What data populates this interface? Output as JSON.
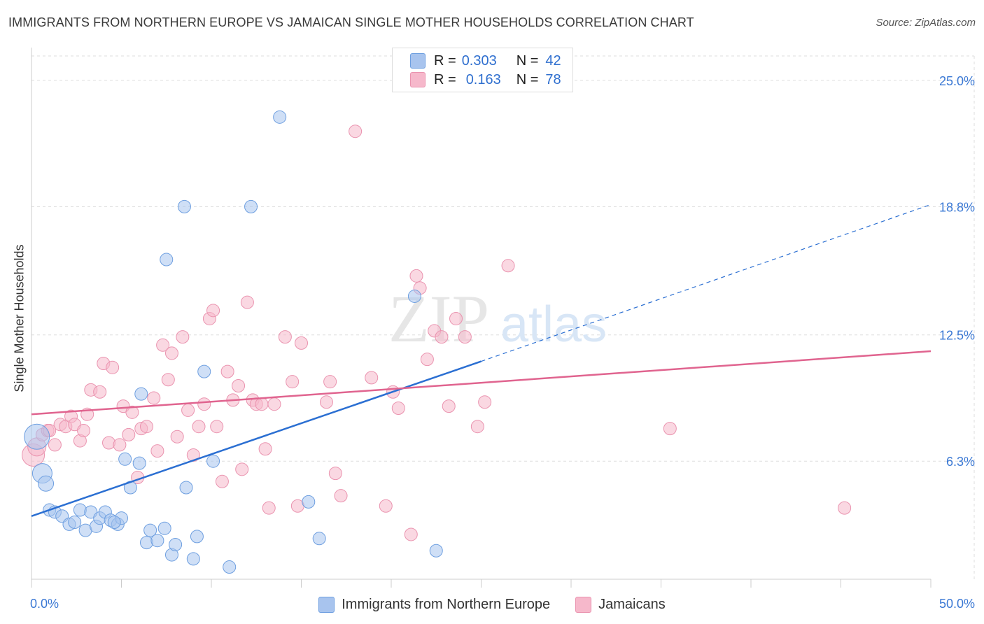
{
  "title": "IMMIGRANTS FROM NORTHERN EUROPE VS JAMAICAN SINGLE MOTHER HOUSEHOLDS CORRELATION CHART",
  "source": "Source: ZipAtlas.com",
  "watermark": {
    "zip": "ZIP",
    "atlas": "atlas"
  },
  "colors": {
    "blue_fill": "#a8c4ee",
    "blue_stroke": "#6e9fe0",
    "blue_line": "#2b6fd2",
    "pink_fill": "#f6b8cb",
    "pink_stroke": "#ea93af",
    "pink_line": "#e0648f",
    "tick_label": "#3a78d4",
    "grid": "#dddddd"
  },
  "legend": {
    "rows": [
      {
        "r_label": "R =",
        "r_value": "0.303",
        "n_label": "N =",
        "n_value": "42"
      },
      {
        "r_label": "R =",
        "r_value": "0.163",
        "n_label": "N =",
        "n_value": "78"
      }
    ]
  },
  "chart_data": {
    "type": "scatter",
    "title": "IMMIGRANTS FROM NORTHERN EUROPE VS JAMAICAN SINGLE MOTHER HOUSEHOLDS CORRELATION CHART",
    "xlabel": "",
    "ylabel": "Single Mother Households",
    "xlim": [
      0,
      50
    ],
    "ylim": [
      0.5,
      26.2
    ],
    "x_tick_labels": [
      "0.0%",
      "50.0%"
    ],
    "y_ticks": [
      6.3,
      12.5,
      18.8,
      25.0
    ],
    "y_tick_labels": [
      "6.3%",
      "12.5%",
      "18.8%",
      "25.0%"
    ],
    "series": [
      {
        "name": "Immigrants from Northern Europe",
        "color": "blue",
        "trend": {
          "x0": 0,
          "y0": 3.6,
          "x1": 25,
          "y1": 11.2,
          "dash_to_x": 50,
          "dash_to_y": 18.9
        },
        "points": [
          [
            0.3,
            7.5,
            18
          ],
          [
            0.6,
            5.7,
            14
          ],
          [
            0.8,
            5.2,
            11
          ],
          [
            1.0,
            3.9,
            9
          ],
          [
            1.3,
            3.8,
            9
          ],
          [
            1.7,
            3.6,
            9
          ],
          [
            2.1,
            3.2,
            9
          ],
          [
            2.4,
            3.3,
            9
          ],
          [
            2.7,
            3.9,
            9
          ],
          [
            3.0,
            2.9,
            9
          ],
          [
            3.3,
            3.8,
            9
          ],
          [
            3.6,
            3.1,
            9
          ],
          [
            3.8,
            3.5,
            9
          ],
          [
            4.1,
            3.8,
            9
          ],
          [
            4.4,
            3.4,
            9
          ],
          [
            4.8,
            3.2,
            9
          ],
          [
            5.0,
            3.5,
            9
          ],
          [
            5.2,
            6.4,
            9
          ],
          [
            5.5,
            5.0,
            9
          ],
          [
            6.0,
            6.2,
            9
          ],
          [
            6.4,
            2.3,
            9
          ],
          [
            6.6,
            2.9,
            9
          ],
          [
            7.0,
            2.4,
            9
          ],
          [
            7.4,
            3.0,
            9
          ],
          [
            7.5,
            16.2,
            9
          ],
          [
            7.8,
            1.7,
            9
          ],
          [
            8.0,
            2.2,
            9
          ],
          [
            8.5,
            18.8,
            9
          ],
          [
            8.6,
            5.0,
            9
          ],
          [
            9.0,
            1.5,
            9
          ],
          [
            9.2,
            2.6,
            9
          ],
          [
            9.6,
            10.7,
            9
          ],
          [
            10.1,
            6.3,
            9
          ],
          [
            11.0,
            1.1,
            9
          ],
          [
            12.2,
            18.8,
            9
          ],
          [
            13.8,
            23.2,
            9
          ],
          [
            15.4,
            4.3,
            9
          ],
          [
            16.0,
            2.5,
            9
          ],
          [
            21.3,
            14.4,
            9
          ],
          [
            22.5,
            1.9,
            9
          ],
          [
            6.1,
            9.6,
            9
          ],
          [
            4.6,
            3.3,
            9
          ]
        ]
      },
      {
        "name": "Jamaicans",
        "color": "pink",
        "trend": {
          "x0": 0,
          "y0": 8.6,
          "x1": 50,
          "y1": 11.7
        },
        "points": [
          [
            0.1,
            6.6,
            16
          ],
          [
            0.3,
            7.0,
            13
          ],
          [
            0.6,
            7.6,
            9
          ],
          [
            0.9,
            7.8,
            9
          ],
          [
            1.3,
            7.1,
            9
          ],
          [
            1.6,
            8.1,
            9
          ],
          [
            1.9,
            8.0,
            9
          ],
          [
            2.2,
            8.5,
            9
          ],
          [
            2.4,
            8.1,
            9
          ],
          [
            2.7,
            7.3,
            9
          ],
          [
            2.9,
            7.8,
            9
          ],
          [
            3.1,
            8.6,
            9
          ],
          [
            3.3,
            9.8,
            9
          ],
          [
            3.8,
            9.7,
            9
          ],
          [
            4.0,
            11.1,
            9
          ],
          [
            4.3,
            7.2,
            9
          ],
          [
            4.5,
            10.9,
            9
          ],
          [
            4.9,
            7.1,
            9
          ],
          [
            5.1,
            9.0,
            9
          ],
          [
            5.4,
            7.6,
            9
          ],
          [
            5.6,
            8.7,
            9
          ],
          [
            5.9,
            5.5,
            9
          ],
          [
            6.1,
            7.9,
            9
          ],
          [
            6.4,
            8.0,
            9
          ],
          [
            6.8,
            9.4,
            9
          ],
          [
            7.0,
            6.8,
            9
          ],
          [
            7.3,
            12.0,
            9
          ],
          [
            7.6,
            10.3,
            9
          ],
          [
            7.8,
            11.6,
            9
          ],
          [
            8.1,
            7.5,
            9
          ],
          [
            8.4,
            12.4,
            9
          ],
          [
            8.7,
            8.8,
            9
          ],
          [
            9.0,
            6.6,
            9
          ],
          [
            9.3,
            8.0,
            9
          ],
          [
            9.6,
            9.1,
            9
          ],
          [
            9.9,
            13.3,
            9
          ],
          [
            10.1,
            13.7,
            9
          ],
          [
            10.3,
            8.0,
            9
          ],
          [
            10.6,
            5.3,
            9
          ],
          [
            10.9,
            10.7,
            9
          ],
          [
            11.2,
            9.3,
            9
          ],
          [
            11.5,
            10.0,
            9
          ],
          [
            11.7,
            5.9,
            9
          ],
          [
            12.0,
            14.1,
            9
          ],
          [
            12.3,
            9.3,
            9
          ],
          [
            12.5,
            9.1,
            9
          ],
          [
            12.8,
            9.1,
            9
          ],
          [
            13.0,
            6.9,
            9
          ],
          [
            13.2,
            4.0,
            9
          ],
          [
            13.5,
            9.1,
            9
          ],
          [
            14.1,
            12.4,
            9
          ],
          [
            14.5,
            10.2,
            9
          ],
          [
            14.8,
            4.1,
            9
          ],
          [
            15.0,
            12.1,
            9
          ],
          [
            16.4,
            9.2,
            9
          ],
          [
            16.6,
            10.2,
            9
          ],
          [
            16.9,
            5.7,
            9
          ],
          [
            17.2,
            4.6,
            9
          ],
          [
            18.0,
            22.5,
            9
          ],
          [
            18.9,
            10.4,
            9
          ],
          [
            19.7,
            4.1,
            9
          ],
          [
            20.1,
            9.7,
            9
          ],
          [
            20.4,
            8.9,
            9
          ],
          [
            21.1,
            2.7,
            9
          ],
          [
            21.4,
            15.4,
            9
          ],
          [
            21.6,
            14.8,
            9
          ],
          [
            22.0,
            11.3,
            9
          ],
          [
            22.4,
            12.7,
            9
          ],
          [
            22.8,
            12.4,
            9
          ],
          [
            23.2,
            9.0,
            9
          ],
          [
            23.6,
            13.3,
            9
          ],
          [
            24.1,
            12.4,
            9
          ],
          [
            24.8,
            8.0,
            9
          ],
          [
            25.2,
            9.2,
            9
          ],
          [
            26.5,
            15.9,
            9
          ],
          [
            35.5,
            7.9,
            9
          ],
          [
            45.2,
            4.0,
            9
          ],
          [
            1.0,
            7.8,
            9
          ]
        ]
      }
    ]
  }
}
